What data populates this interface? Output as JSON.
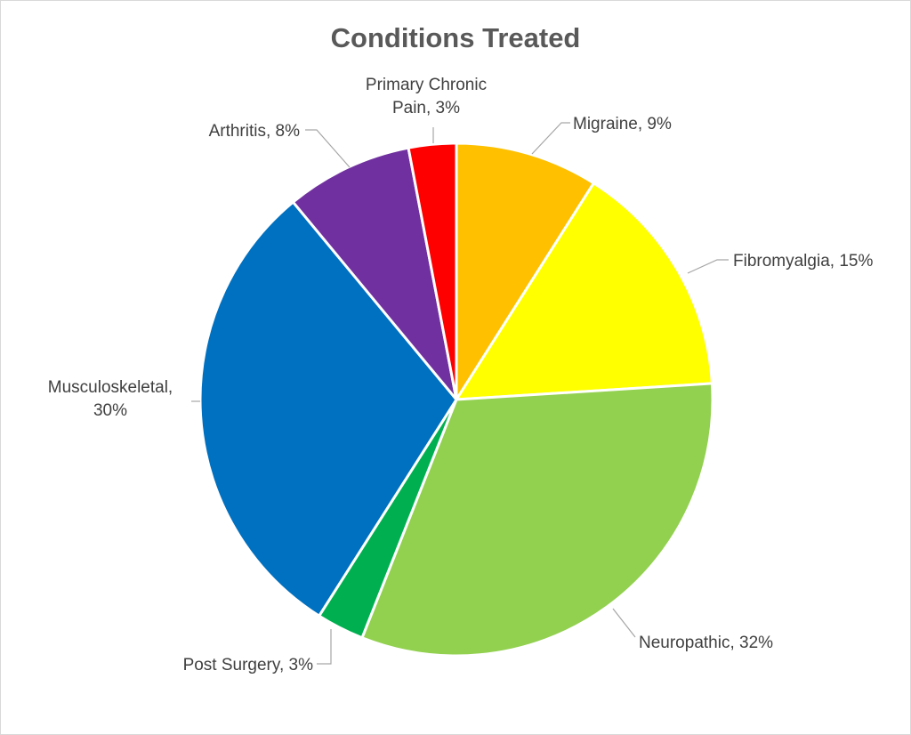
{
  "chart_data": {
    "type": "pie",
    "title": "Conditions Treated",
    "slices": [
      {
        "label": "Migraine",
        "value": 9,
        "value_label": "9%",
        "color": "#FFC000"
      },
      {
        "label": "Fibromyalgia",
        "value": 15,
        "value_label": "15%",
        "color": "#FFFF00"
      },
      {
        "label": "Neuropathic",
        "value": 32,
        "value_label": "32%",
        "color": "#92D050"
      },
      {
        "label": "Post Surgery",
        "value": 3,
        "value_label": "3%",
        "color": "#00B050"
      },
      {
        "label": "Musculoskeletal",
        "value": 30,
        "value_label": "30%",
        "color": "#0070C0"
      },
      {
        "label": "Arthritis",
        "value": 8,
        "value_label": "8%",
        "color": "#7030A0"
      },
      {
        "label": "Primary Chronic Pain",
        "value": 3,
        "value_label": "3%",
        "color": "#FF0000"
      }
    ],
    "data_labels": [
      {
        "lines": [
          "Migraine, 9%"
        ]
      },
      {
        "lines": [
          "Fibromyalgia, 15%"
        ]
      },
      {
        "lines": [
          "Neuropathic, 32%"
        ]
      },
      {
        "lines": [
          "Post Surgery, 3%"
        ]
      },
      {
        "lines": [
          "Musculoskeletal,",
          "30%"
        ]
      },
      {
        "lines": [
          "Arthritis, 8%"
        ]
      },
      {
        "lines": [
          "Primary Chronic",
          "Pain, 3%"
        ]
      }
    ],
    "legend": "none"
  }
}
